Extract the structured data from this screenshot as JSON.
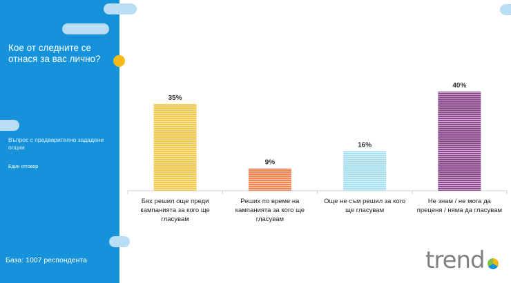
{
  "sidebar": {
    "question": "Кое от следните се отнася за вас лично?",
    "question_type": "Въпрос с предварително зададени опции",
    "answer_mode": "Един отговор",
    "base": "База: 1007 респондента"
  },
  "logo": {
    "text": "trend"
  },
  "colors": {
    "sidebar": "#1592d9",
    "accent_dot": "#f5b918"
  },
  "chart_data": {
    "type": "bar",
    "categories": [
      "Бях решил още преди кампанията за кого ще гласувам",
      "Реших по време на кампанията за кого ще гласувам",
      "Още не съм решил за кого ще гласувам",
      "Не знам / не мога да преценя / няма да гласувам"
    ],
    "category_lines": [
      [
        "Бях решил още преди",
        "кампанията за кого ще",
        "гласувам"
      ],
      [
        "Реших по време на",
        "кампанията за кого ще",
        "гласувам"
      ],
      [
        "Още не съм решил за кого",
        "ще гласувам"
      ],
      [
        "Не знам / не мога да",
        "преценя / няма да гласувам"
      ]
    ],
    "values": [
      35,
      9,
      16,
      40
    ],
    "value_labels": [
      "35%",
      "9%",
      "16%",
      "40%"
    ],
    "colors": [
      "#f2c94c",
      "#ee8452",
      "#a8e0f0",
      "#8e4a8f"
    ],
    "ylim": [
      0,
      45
    ],
    "grid": false,
    "xlabel": "",
    "ylabel": ""
  }
}
